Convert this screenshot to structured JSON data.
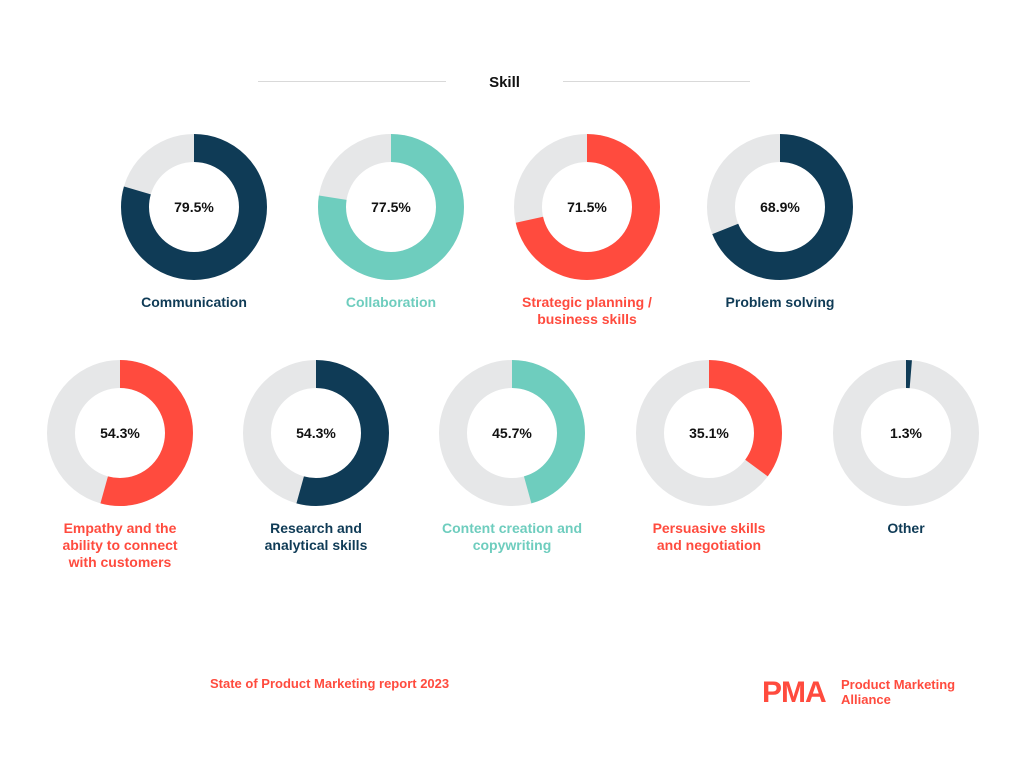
{
  "header": {
    "title": "Skill"
  },
  "chart_data": {
    "type": "pie",
    "variant": "donut-grid",
    "title": "Skill",
    "unit": "%",
    "colors": {
      "navy": "#0f3b56",
      "teal": "#6ecdbe",
      "coral": "#ff4b3e",
      "track": "#e6e7e8"
    },
    "items": [
      {
        "label": "Communication",
        "value": 79.5,
        "display": "79.5%",
        "color": "#0f3b56"
      },
      {
        "label": "Collaboration",
        "value": 77.5,
        "display": "77.5%",
        "color": "#6ecdbe"
      },
      {
        "label": "Strategic planning / business skills",
        "value": 71.5,
        "display": "71.5%",
        "color": "#ff4b3e"
      },
      {
        "label": "Problem solving",
        "value": 68.9,
        "display": "68.9%",
        "color": "#0f3b56"
      },
      {
        "label": "Empathy and the ability to connect with customers",
        "value": 54.3,
        "display": "54.3%",
        "color": "#ff4b3e"
      },
      {
        "label": "Research and analytical skills",
        "value": 54.3,
        "display": "54.3%",
        "color": "#0f3b56"
      },
      {
        "label": "Content creation and copywriting",
        "value": 45.7,
        "display": "45.7%",
        "color": "#6ecdbe"
      },
      {
        "label": "Persuasive skills and negotiation",
        "value": 35.1,
        "display": "35.1%",
        "color": "#ff4b3e"
      },
      {
        "label": "Other",
        "value": 1.3,
        "display": "1.3%",
        "color": "#0f3b56"
      }
    ]
  },
  "footer": {
    "report_title": "State of Product Marketing report 2023",
    "brand_logo": "PMA",
    "brand_name_line1": "Product Marketing",
    "brand_name_line2": "Alliance"
  }
}
